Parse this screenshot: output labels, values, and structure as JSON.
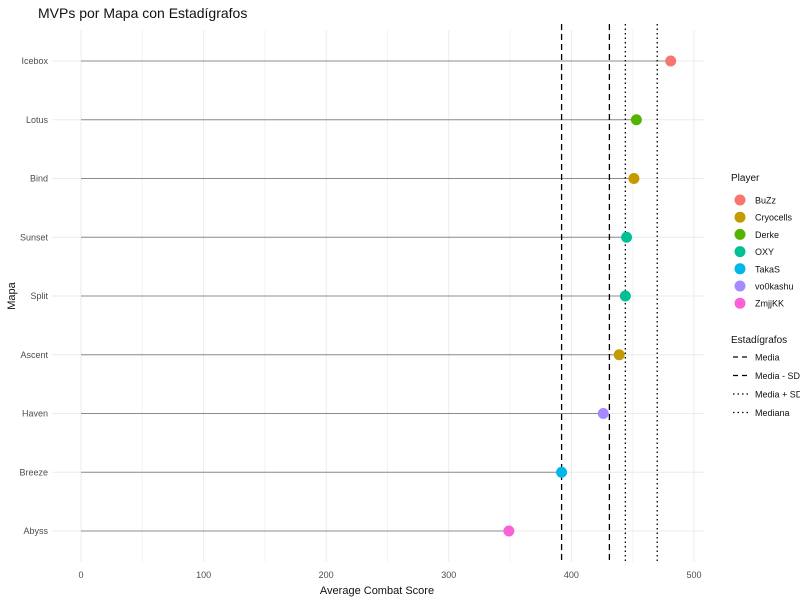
{
  "chart_data": {
    "type": "lollipop",
    "title": "MVPs por Mapa con Estadígrafos",
    "xlabel": "Average Combat Score",
    "ylabel": "Mapa",
    "xlim": [
      0,
      500
    ],
    "x_ticks": [
      0,
      100,
      200,
      300,
      400,
      500
    ],
    "grid": true,
    "categories": [
      "Icebox",
      "Lotus",
      "Bind",
      "Sunset",
      "Split",
      "Ascent",
      "Haven",
      "Breeze",
      "Abyss"
    ],
    "points": [
      {
        "map": "Icebox",
        "player": "BuZz",
        "value": 481
      },
      {
        "map": "Lotus",
        "player": "Derke",
        "value": 453
      },
      {
        "map": "Bind",
        "player": "Cryocells",
        "value": 451
      },
      {
        "map": "Sunset",
        "player": "OXY",
        "value": 445
      },
      {
        "map": "Split",
        "player": "OXY",
        "value": 444
      },
      {
        "map": "Ascent",
        "player": "Cryocells",
        "value": 439
      },
      {
        "map": "Haven",
        "player": "vo0kashu",
        "value": 426
      },
      {
        "map": "Breeze",
        "player": "TakaS",
        "value": 392
      },
      {
        "map": "Abyss",
        "player": "ZmjjKK",
        "value": 349
      }
    ],
    "players": [
      {
        "name": "BuZz",
        "color": "#F8766D"
      },
      {
        "name": "Cryocells",
        "color": "#C49A00"
      },
      {
        "name": "Derke",
        "color": "#53B400"
      },
      {
        "name": "OXY",
        "color": "#00C094"
      },
      {
        "name": "TakaS",
        "color": "#00B6EB"
      },
      {
        "name": "vo0kashu",
        "color": "#A58AFF"
      },
      {
        "name": "ZmjjKK",
        "color": "#FB61D7"
      }
    ],
    "legend_player_title": "Player",
    "legend_stats_title": "Estadígrafos",
    "reference_lines": [
      {
        "name": "Media",
        "value": 431,
        "linetype": "dashed"
      },
      {
        "name": "Media - SD",
        "value": 392,
        "linetype": "dashed"
      },
      {
        "name": "Media + SD",
        "value": 470,
        "linetype": "dotted"
      },
      {
        "name": "Mediana",
        "value": 444,
        "linetype": "dotted"
      }
    ],
    "legend_placement": "right"
  }
}
